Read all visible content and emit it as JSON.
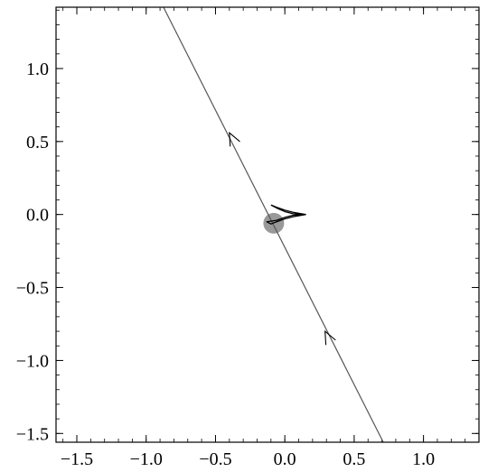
{
  "chart_data": {
    "type": "line",
    "title": "",
    "xlabel": "",
    "ylabel": "",
    "xlim": [
      -1.65,
      1.4
    ],
    "ylim": [
      -1.56,
      1.42
    ],
    "grid": false,
    "x_ticks": [
      {
        "value": -1.5,
        "label": "−1.5"
      },
      {
        "value": -1.0,
        "label": "−1.0"
      },
      {
        "value": -0.5,
        "label": "−0.5"
      },
      {
        "value": 0.0,
        "label": "0.0"
      },
      {
        "value": 0.5,
        "label": "0.5"
      },
      {
        "value": 1.0,
        "label": "1.0"
      }
    ],
    "y_ticks": [
      {
        "value": 1.0,
        "label": "1.0"
      },
      {
        "value": 0.5,
        "label": "0.5"
      },
      {
        "value": 0.0,
        "label": "0.0"
      },
      {
        "value": -0.5,
        "label": "−0.5"
      },
      {
        "value": -1.0,
        "label": "−1.0"
      },
      {
        "value": -1.5,
        "label": "−1.5"
      }
    ],
    "minor_step": 0.1,
    "line": {
      "x": [
        0.71,
        -0.875
      ],
      "y": [
        -1.56,
        1.42
      ],
      "color": "#555555"
    },
    "arrows": [
      {
        "x": 0.29,
        "y": -0.8
      },
      {
        "x": -0.4,
        "y": 0.56
      }
    ],
    "caustic": {
      "x": [
        -0.1,
        -0.06,
        0.0,
        0.06,
        0.15,
        0.06,
        0.0,
        -0.06,
        -0.1,
        -0.13,
        -0.06,
        0.0,
        0.06,
        0.15,
        0.06,
        0.0,
        -0.05,
        -0.1
      ],
      "y": [
        0.065,
        0.05,
        0.03,
        0.015,
        0.0,
        -0.015,
        -0.03,
        -0.05,
        -0.065,
        -0.05,
        -0.04,
        -0.02,
        -0.005,
        0.0,
        0.005,
        0.02,
        0.04,
        0.065
      ],
      "color": "#000000"
    },
    "disk": {
      "x": -0.08,
      "y": -0.06,
      "r": 0.075,
      "color": "#999999"
    }
  }
}
